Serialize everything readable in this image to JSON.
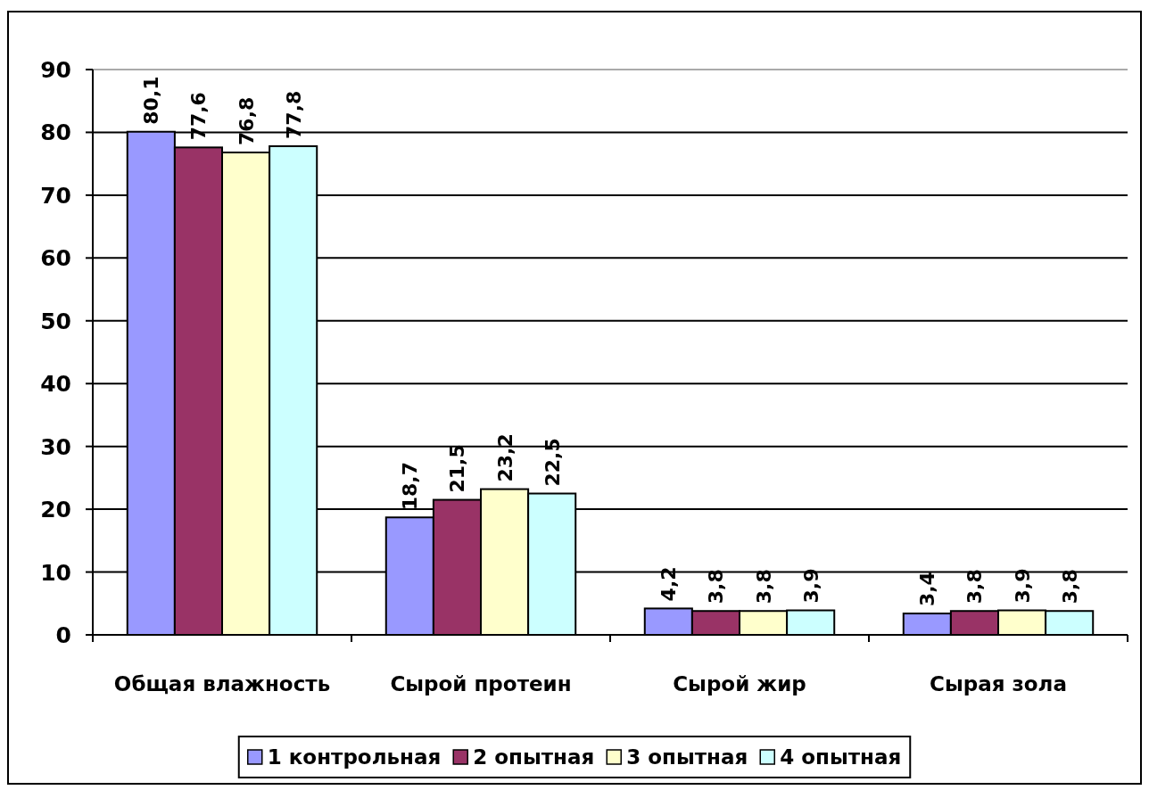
{
  "chart_data": {
    "type": "bar",
    "categories": [
      "Общая влажность",
      "Сырой протеин",
      "Сырой жир",
      "Сырая зола"
    ],
    "series": [
      {
        "name": "1 контрольная",
        "color": "#9999ff",
        "values": [
          80.1,
          18.7,
          4.2,
          3.4
        ],
        "value_labels": [
          "80,1",
          "18,7",
          "4,2",
          "3,4"
        ]
      },
      {
        "name": "2 опытная",
        "color": "#993366",
        "values": [
          77.6,
          21.5,
          3.8,
          3.8
        ],
        "value_labels": [
          "77,6",
          "21,5",
          "3,8",
          "3,8"
        ]
      },
      {
        "name": "3 опытная",
        "color": "#ffffcc",
        "values": [
          76.8,
          23.2,
          3.8,
          3.9
        ],
        "value_labels": [
          "76,8",
          "23,2",
          "3,8",
          "3,9"
        ]
      },
      {
        "name": "4 опытная",
        "color": "#ccffff",
        "values": [
          77.8,
          22.5,
          3.9,
          3.8
        ],
        "value_labels": [
          "77,8",
          "22,5",
          "3,9",
          "3,8"
        ]
      }
    ],
    "ylim": [
      0,
      90
    ],
    "yticks": [
      0,
      10,
      20,
      30,
      40,
      50,
      60,
      70,
      80,
      90
    ],
    "grid": "y",
    "legend": "bottom"
  }
}
